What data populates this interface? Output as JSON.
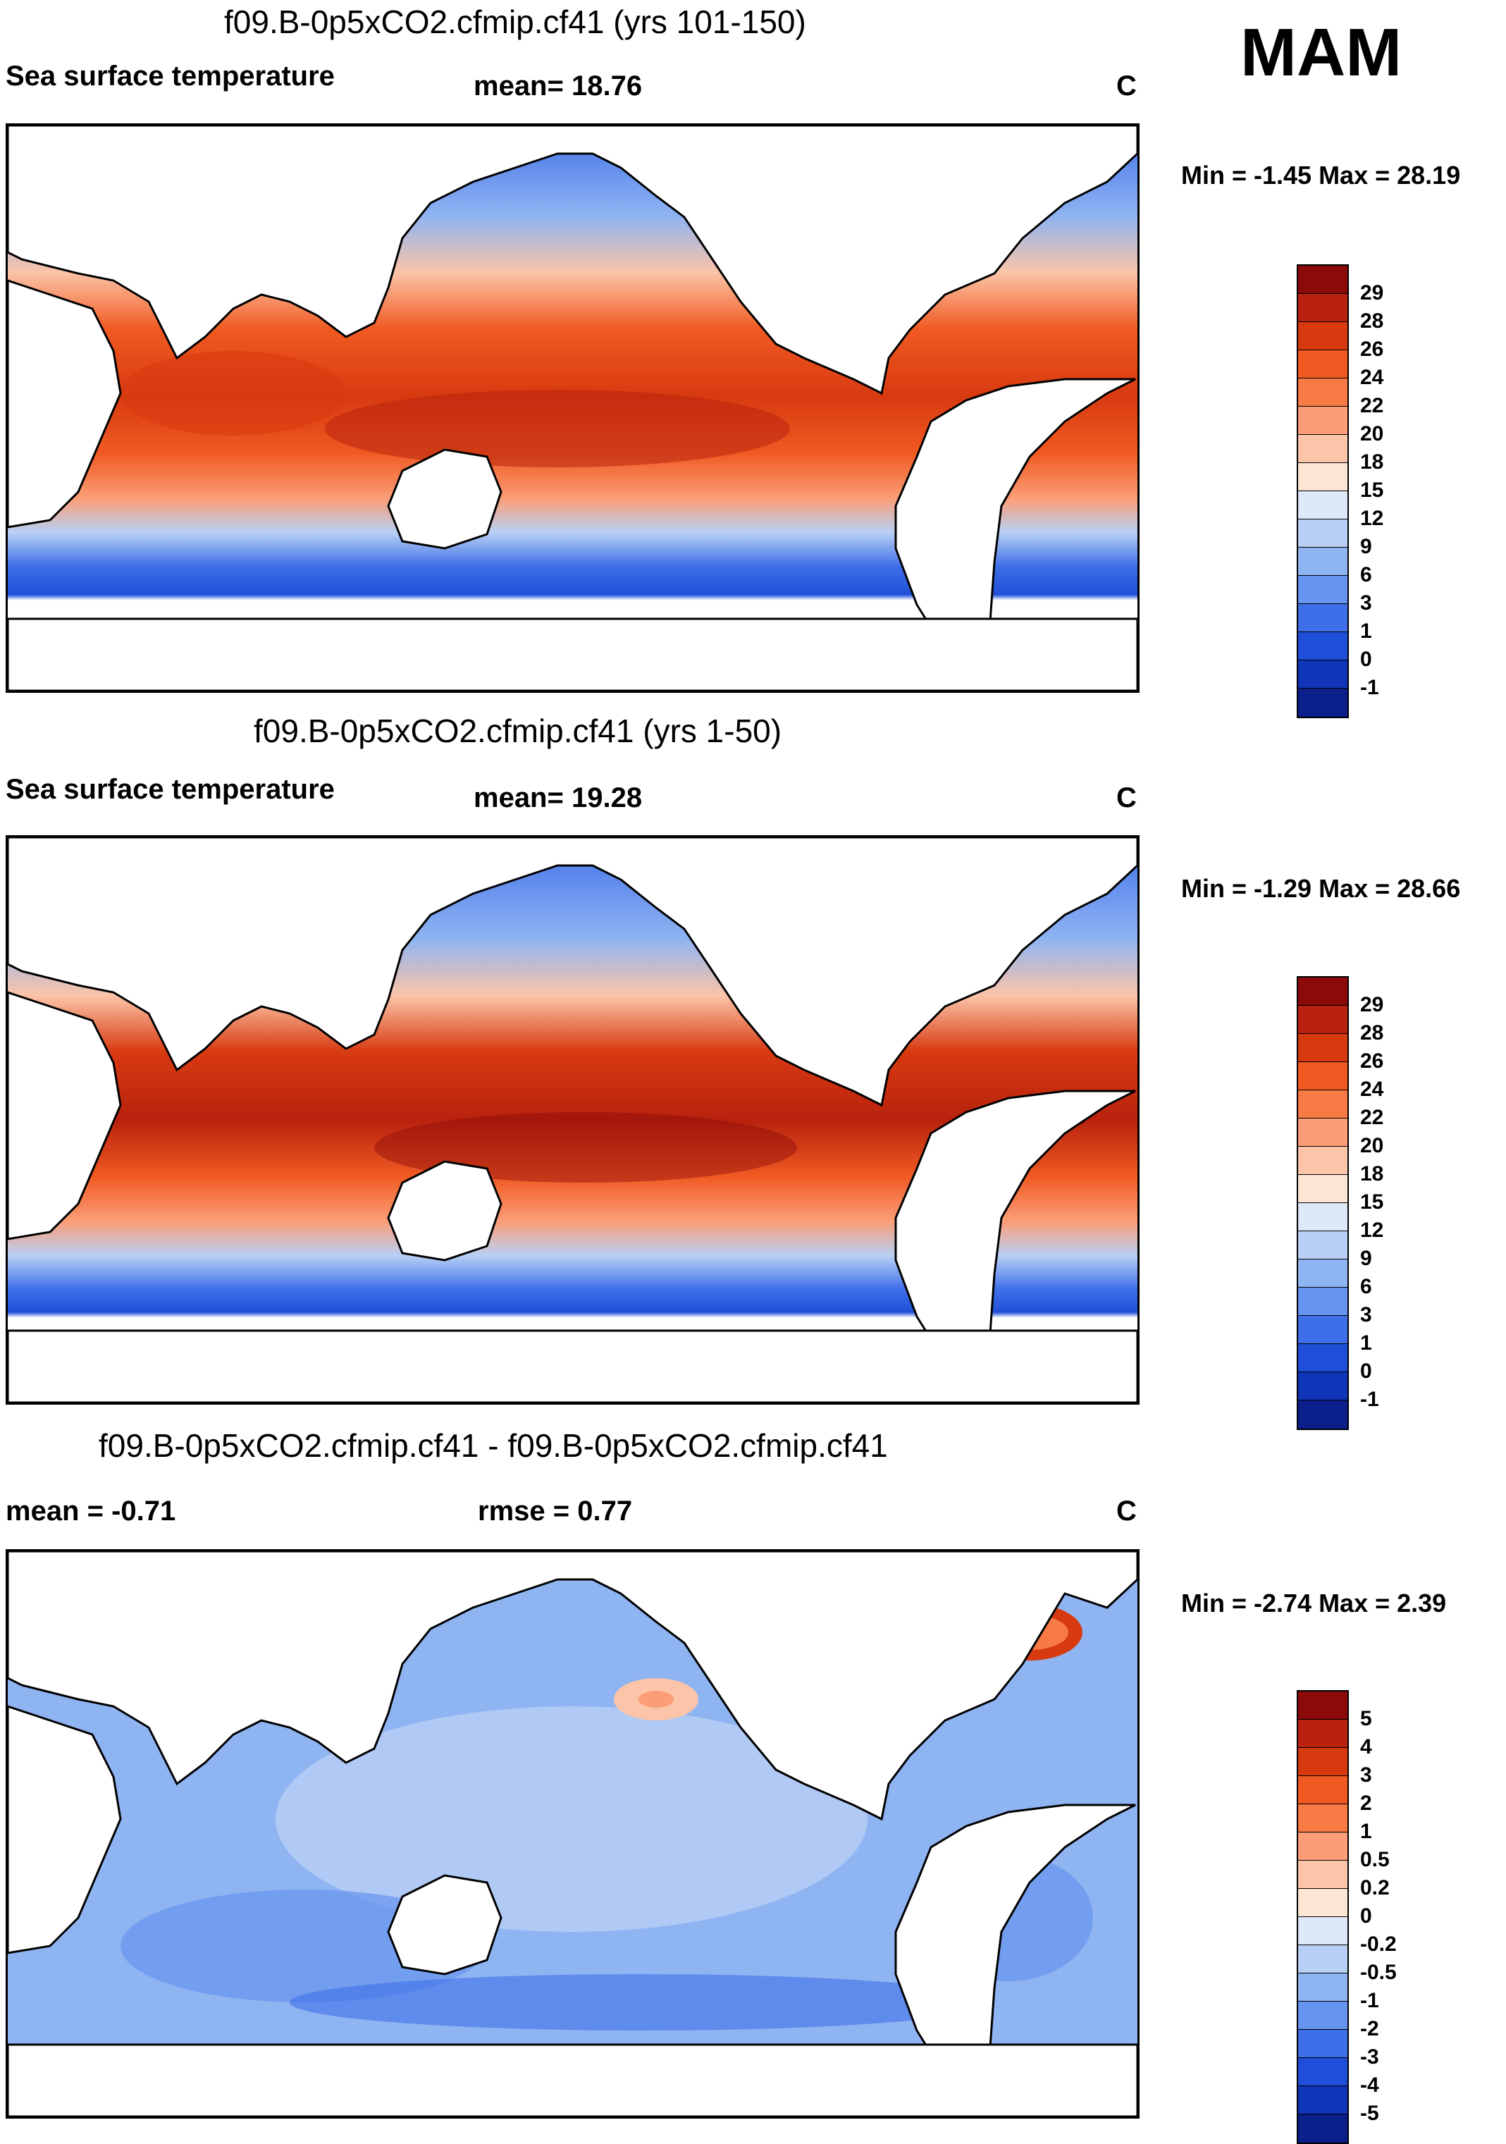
{
  "season": "MAM",
  "panels": [
    {
      "title": "f09.B-0p5xCO2.cfmip.cf41 (yrs 101-150)",
      "left_label": "Sea surface temperature",
      "center_label": "mean=  18.76",
      "units": "C",
      "minmax": "Min =  -1.45 Max =  28.19",
      "map_icon": "world-sst-map",
      "colorbar": {
        "colors": [
          "#8b0a0a",
          "#b8220e",
          "#d83a10",
          "#f05a22",
          "#f77a45",
          "#fb9e78",
          "#fcc4a8",
          "#fde5d4",
          "#dce9f8",
          "#b8d0f5",
          "#8fb4f2",
          "#6694ee",
          "#3f6fe8",
          "#1f4fd8",
          "#1035b8",
          "#0a1f8a"
        ],
        "labels": [
          "29",
          "28",
          "26",
          "24",
          "22",
          "20",
          "18",
          "15",
          "12",
          "9",
          "6",
          "3",
          "1",
          "0",
          "-1"
        ]
      }
    },
    {
      "title": "f09.B-0p5xCO2.cfmip.cf41 (yrs 1-50)",
      "left_label": "Sea surface temperature",
      "center_label": "mean=  19.28",
      "units": "C",
      "minmax": "Min =  -1.29 Max =  28.66",
      "map_icon": "world-sst-map",
      "colorbar": {
        "colors": [
          "#8b0a0a",
          "#b8220e",
          "#d83a10",
          "#f05a22",
          "#f77a45",
          "#fb9e78",
          "#fcc4a8",
          "#fde5d4",
          "#dce9f8",
          "#b8d0f5",
          "#8fb4f2",
          "#6694ee",
          "#3f6fe8",
          "#1f4fd8",
          "#1035b8",
          "#0a1f8a"
        ],
        "labels": [
          "29",
          "28",
          "26",
          "24",
          "22",
          "20",
          "18",
          "15",
          "12",
          "9",
          "6",
          "3",
          "1",
          "0",
          "-1"
        ]
      }
    },
    {
      "title": "f09.B-0p5xCO2.cfmip.cf41 - f09.B-0p5xCO2.cfmip.cf41",
      "left_label": "mean =  -0.71",
      "center_label": "rmse =   0.77",
      "units": "C",
      "minmax": "Min =  -2.74 Max =   2.39",
      "map_icon": "world-sst-difference-map",
      "colorbar": {
        "colors": [
          "#8b0a0a",
          "#b8220e",
          "#d83a10",
          "#f05a22",
          "#f77a45",
          "#fb9e78",
          "#fcc4a8",
          "#fde5d4",
          "#dce9f8",
          "#b8d0f5",
          "#8fb4f2",
          "#6694ee",
          "#3f6fe8",
          "#1f4fd8",
          "#1035b8",
          "#0a1f8a"
        ],
        "labels": [
          "5",
          "4",
          "3",
          "2",
          "1",
          "0.5",
          "0.2",
          "0",
          "-0.2",
          "-0.5",
          "-1",
          "-2",
          "-3",
          "-4",
          "-5"
        ]
      }
    }
  ]
}
